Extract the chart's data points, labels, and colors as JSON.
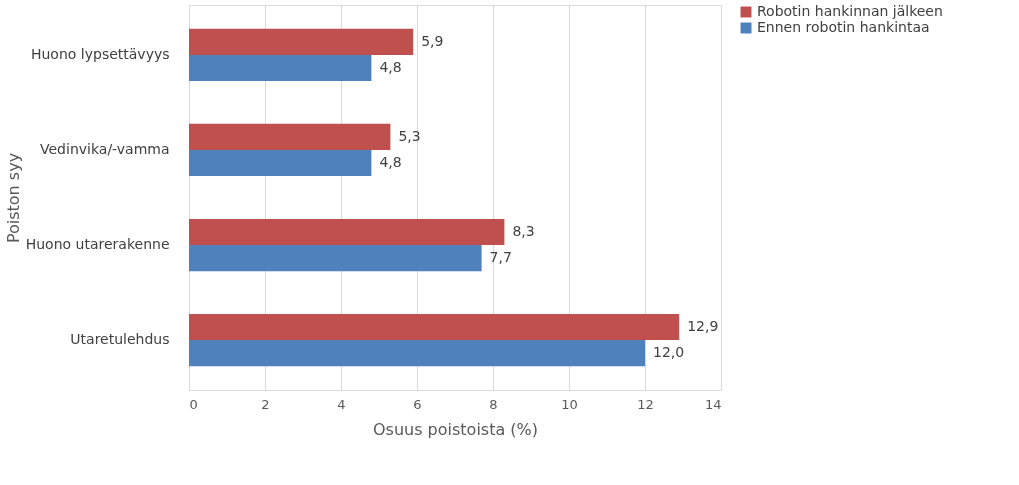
{
  "chart_data": {
    "type": "bar",
    "orientation": "horizontal",
    "categories": [
      "Huono lypsettävyys",
      "Vedinvika/-vamma",
      "Huono utarerakenne",
      "Utaretulehdus"
    ],
    "series": [
      {
        "name": "Robotin hankinnan jälkeen",
        "color": "#c0504d",
        "values": [
          5.9,
          5.3,
          8.3,
          12.9
        ],
        "value_labels": [
          "5,9",
          "5,3",
          "8,3",
          "12,9"
        ]
      },
      {
        "name": "Ennen robotin hankintaa",
        "color": "#4f81bd",
        "values": [
          4.8,
          4.8,
          7.7,
          12.0
        ],
        "value_labels": [
          "4,8",
          "4,8",
          "7,7",
          "12,0"
        ]
      }
    ],
    "xlabel": "Osuus poistoista (%)",
    "ylabel": "Poiston syy",
    "xlim": [
      0,
      14
    ],
    "xticks": [
      0,
      2,
      4,
      6,
      8,
      10,
      12,
      14
    ],
    "grid": "x",
    "legend": "right"
  }
}
